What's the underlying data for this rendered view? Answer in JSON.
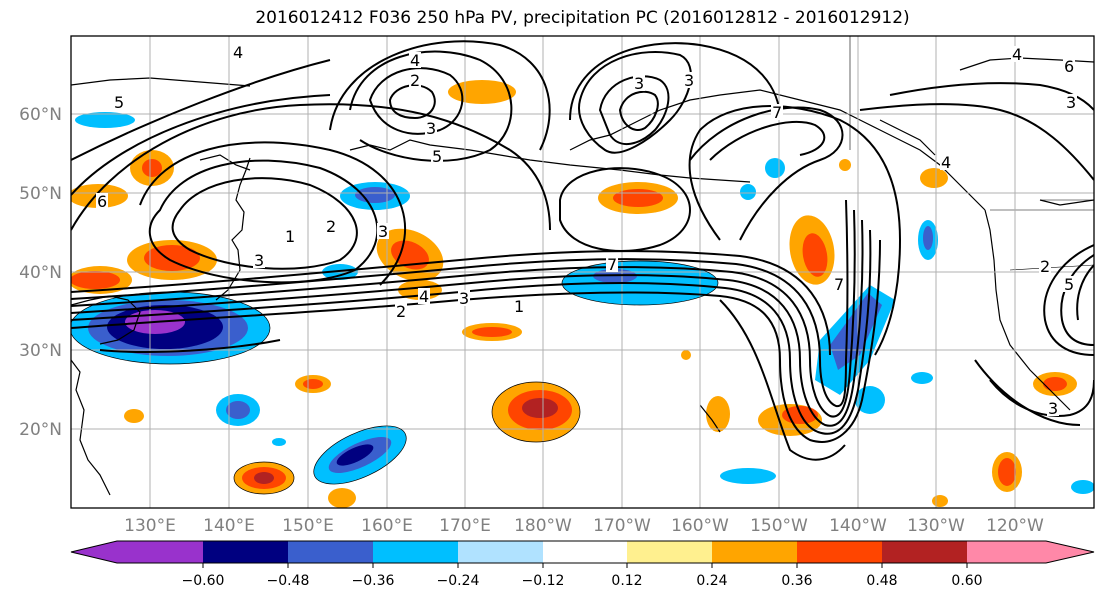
{
  "title": "2016012412 F036 250 hPa PV, precipitation PC (2016012812 - 2016012912)",
  "map": {
    "lat_labels": [
      "60°N",
      "50°N",
      "40°N",
      "30°N",
      "20°N"
    ],
    "lon_labels": [
      "130°E",
      "140°E",
      "150°E",
      "160°E",
      "170°E",
      "180°W",
      "170°W",
      "160°W",
      "150°W",
      "140°W",
      "130°W",
      "120°W"
    ],
    "contour_labels": [
      "4",
      "2",
      "3",
      "5",
      "6",
      "1",
      "2",
      "3",
      "4",
      "3",
      "1",
      "2",
      "7",
      "7",
      "4",
      "3",
      "5",
      "3",
      "7",
      "4",
      "6",
      "3",
      "2",
      "4",
      "3",
      "3",
      "5"
    ]
  },
  "colorbar": {
    "tick_labels": [
      "−0.60",
      "−0.48",
      "−0.36",
      "−0.24",
      "−0.12",
      "0.12",
      "0.24",
      "0.36",
      "0.48",
      "0.60"
    ],
    "colors": [
      "#9932cc",
      "#000080",
      "#3a5fcd",
      "#00bfff",
      "#b0e2ff",
      "#ffffff",
      "#fff08f",
      "#ffa500",
      "#ff4500",
      "#b22222",
      "#ff88a8"
    ]
  }
}
